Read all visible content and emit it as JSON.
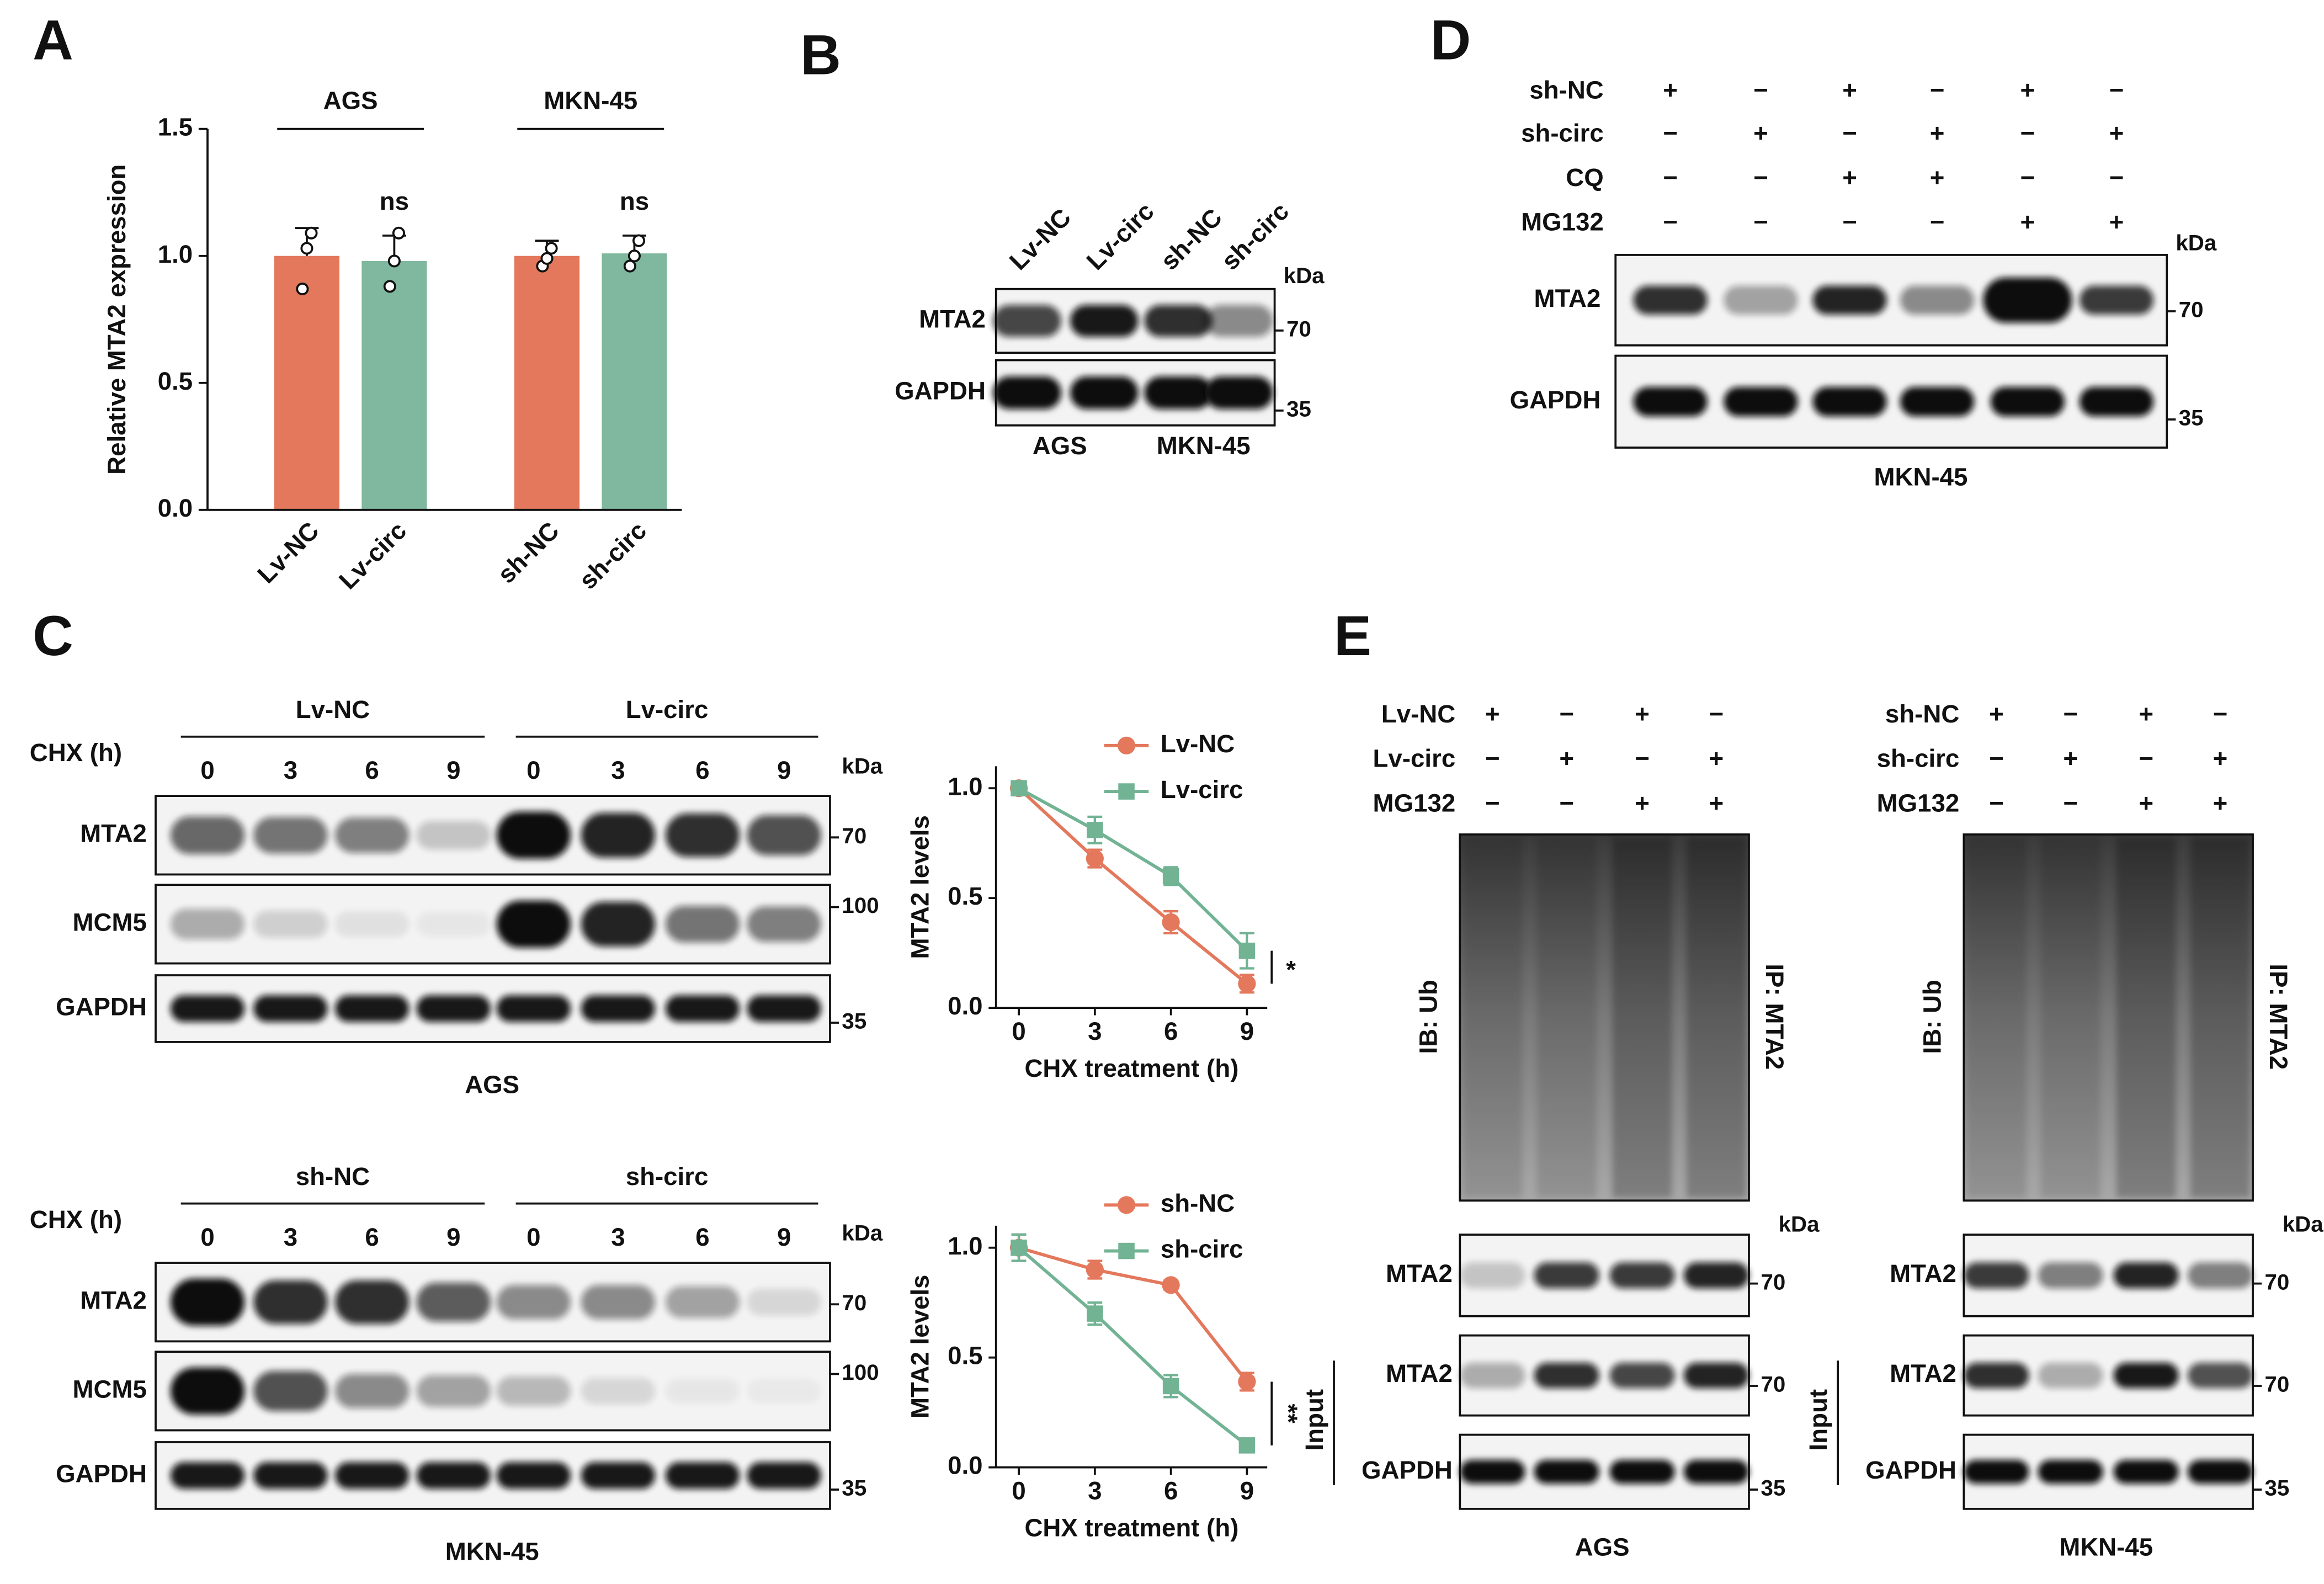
{
  "chart_data": [
    {
      "type": "bar",
      "label": "A",
      "ylabel": "Relative MTA2 expression",
      "categories": [
        "Lv-NC",
        "Lv-circ",
        "sh-NC",
        "sh-circ"
      ],
      "values": [
        1.0,
        0.98,
        1.0,
        1.01
      ],
      "errors": [
        0.11,
        0.1,
        0.06,
        0.07
      ],
      "points": [
        [
          0.87,
          1.03,
          1.09
        ],
        [
          0.88,
          0.98,
          1.09
        ],
        [
          0.96,
          0.99,
          1.03
        ],
        [
          0.96,
          1.0,
          1.06
        ]
      ],
      "colors": [
        "#e3785c",
        "#7fb89e",
        "#e3785c",
        "#7fb89e"
      ],
      "ylim": [
        0,
        1.5
      ],
      "yticks": [
        {
          "value": 0,
          "label": "0.0"
        },
        {
          "value": 0.5,
          "label": "0.5"
        },
        {
          "value": 1,
          "label": "1.0"
        },
        {
          "value": 1.5,
          "label": "1.5"
        }
      ],
      "groups": [
        {
          "name": "AGS",
          "annotation": "ns"
        },
        {
          "name": "MKN-45",
          "annotation": "ns"
        }
      ]
    },
    {
      "type": "line",
      "xlabel": "CHX treatment (h)",
      "ylabel": "MTA2 levels",
      "annotation": "*",
      "x": [
        0,
        3,
        6,
        9
      ],
      "xlim": [
        -0.9,
        9.8
      ],
      "xticks": [
        0,
        3,
        6,
        9
      ],
      "ylim": [
        0,
        1.1
      ],
      "yticks": [
        {
          "value": 0,
          "label": "0.0"
        },
        {
          "value": 0.5,
          "label": "0.5"
        },
        {
          "value": 1,
          "label": "1.0"
        }
      ],
      "series": [
        {
          "name": "Lv-NC",
          "color": "#e3785c",
          "marker": "circle",
          "values": [
            1.0,
            0.68,
            0.39,
            0.11
          ],
          "errors": [
            0.03,
            0.04,
            0.05,
            0.04
          ]
        },
        {
          "name": "Lv-circ",
          "color": "#72b394",
          "marker": "square",
          "values": [
            1.0,
            0.81,
            0.6,
            0.26
          ],
          "errors": [
            0.03,
            0.06,
            0.04,
            0.08
          ]
        }
      ]
    },
    {
      "type": "line",
      "xlabel": "CHX treatment (h)",
      "ylabel": "MTA2 levels",
      "annotation": "**",
      "x": [
        0,
        3,
        6,
        9
      ],
      "xlim": [
        -0.9,
        9.8
      ],
      "xticks": [
        0,
        3,
        6,
        9
      ],
      "ylim": [
        0,
        1.1
      ],
      "yticks": [
        {
          "value": 0,
          "label": "0.0"
        },
        {
          "value": 0.5,
          "label": "0.5"
        },
        {
          "value": 1,
          "label": "1.0"
        }
      ],
      "series": [
        {
          "name": "sh-NC",
          "color": "#e3785c",
          "marker": "circle",
          "values": [
            1.0,
            0.9,
            0.83,
            0.39
          ],
          "errors": [
            0.06,
            0.04,
            0.02,
            0.04
          ]
        },
        {
          "name": "sh-circ",
          "color": "#72b394",
          "marker": "square",
          "values": [
            1.0,
            0.7,
            0.37,
            0.1
          ],
          "errors": [
            0.06,
            0.05,
            0.05,
            0.03
          ]
        }
      ]
    }
  ],
  "panels": {
    "B": {
      "label": "B",
      "lanes": [
        "Lv-NC",
        "Lv-circ",
        "sh-NC",
        "sh-circ"
      ],
      "rows": [
        "MTA2",
        "GAPDH"
      ],
      "kda": "kDa",
      "markers": [
        70,
        35
      ],
      "cells": [
        "AGS",
        "MKN-45"
      ]
    },
    "C": {
      "label": "C",
      "blots": [
        {
          "cell": "AGS",
          "treatment": "CHX (h)",
          "groups": [
            "Lv-NC",
            "Lv-circ"
          ],
          "times": [
            0,
            3,
            6,
            9,
            0,
            3,
            6,
            9
          ],
          "rows": [
            "MTA2",
            "MCM5",
            "GAPDH"
          ],
          "kda": "kDa",
          "markers": [
            70,
            100,
            35
          ]
        },
        {
          "cell": "MKN-45",
          "treatment": "CHX (h)",
          "groups": [
            "sh-NC",
            "sh-circ"
          ],
          "times": [
            0,
            3,
            6,
            9,
            0,
            3,
            6,
            9
          ],
          "rows": [
            "MTA2",
            "MCM5",
            "GAPDH"
          ],
          "kda": "kDa",
          "markers": [
            70,
            100,
            35
          ]
        }
      ]
    },
    "D": {
      "label": "D",
      "treatments": [
        {
          "name": "sh-NC",
          "signs": [
            "+",
            "−",
            "+",
            "−",
            "+",
            "−"
          ]
        },
        {
          "name": "sh-circ",
          "signs": [
            "−",
            "+",
            "−",
            "+",
            "−",
            "+"
          ]
        },
        {
          "name": "CQ",
          "signs": [
            "−",
            "−",
            "+",
            "+",
            "−",
            "−"
          ]
        },
        {
          "name": "MG132",
          "signs": [
            "−",
            "−",
            "−",
            "−",
            "+",
            "+"
          ]
        }
      ],
      "kda": "kDa",
      "rows": [
        "MTA2",
        "GAPDH"
      ],
      "markers": [
        70,
        35
      ],
      "cell": "MKN-45"
    },
    "E": {
      "label": "E",
      "blots": [
        {
          "treatments": [
            {
              "name": "Lv-NC",
              "signs": [
                "+",
                "−",
                "+",
                "−"
              ]
            },
            {
              "name": "Lv-circ",
              "signs": [
                "−",
                "+",
                "−",
                "+"
              ]
            },
            {
              "name": "MG132",
              "signs": [
                "−",
                "−",
                "+",
                "+"
              ]
            }
          ],
          "ib": "IB: Ub",
          "ip": "IP: MTA2",
          "kda": "kDa",
          "ip_row": "MTA2",
          "ip_marker": 70,
          "input": "Input",
          "input_rows": [
            "MTA2",
            "GAPDH"
          ],
          "input_markers": [
            70,
            35
          ],
          "cell": "AGS"
        },
        {
          "treatments": [
            {
              "name": "sh-NC",
              "signs": [
                "+",
                "−",
                "+",
                "−"
              ]
            },
            {
              "name": "sh-circ",
              "signs": [
                "−",
                "+",
                "−",
                "+"
              ]
            },
            {
              "name": "MG132",
              "signs": [
                "−",
                "−",
                "+",
                "+"
              ]
            }
          ],
          "ib": "IB: Ub",
          "ip": "IP: MTA2",
          "kda": "kDa",
          "ip_row": "MTA2",
          "ip_marker": 70,
          "input": "Input",
          "input_rows": [
            "MTA2",
            "GAPDH"
          ],
          "input_markers": [
            70,
            35
          ],
          "cell": "MKN-45"
        }
      ]
    }
  }
}
